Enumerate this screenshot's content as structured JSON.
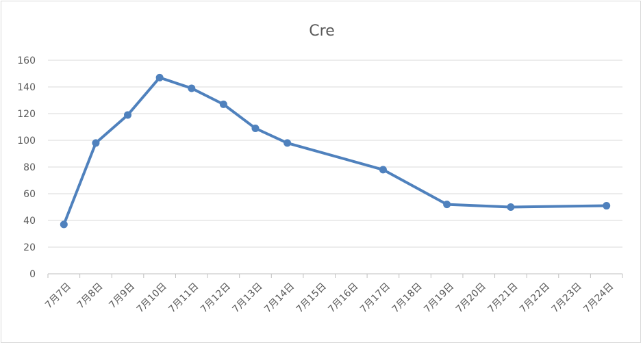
{
  "chart_data": {
    "type": "line",
    "title": "Cre",
    "xlabel": "",
    "ylabel": "",
    "ylim": [
      0,
      160
    ],
    "yticks": [
      0,
      20,
      40,
      60,
      80,
      100,
      120,
      140,
      160
    ],
    "grid": true,
    "legend": "none",
    "categories": [
      "7月7日",
      "7月8日",
      "7月9日",
      "7月10日",
      "7月11日",
      "7月12日",
      "7月13日",
      "7月14日",
      "7月15日",
      "7月16日",
      "7月17日",
      "7月18日",
      "7月19日",
      "7月20日",
      "7月21日",
      "7月22日",
      "7月23日",
      "7月24日"
    ],
    "series": [
      {
        "color": "#4f81bd",
        "points": [
          {
            "x": 0,
            "y": 37
          },
          {
            "x": 1,
            "y": 98
          },
          {
            "x": 2,
            "y": 119
          },
          {
            "x": 3,
            "y": 147
          },
          {
            "x": 4,
            "y": 139
          },
          {
            "x": 5,
            "y": 127
          },
          {
            "x": 6,
            "y": 109
          },
          {
            "x": 7,
            "y": 98
          },
          {
            "x": 10,
            "y": 78
          },
          {
            "x": 12,
            "y": 52
          },
          {
            "x": 14,
            "y": 50
          },
          {
            "x": 17,
            "y": 51
          }
        ]
      }
    ]
  }
}
